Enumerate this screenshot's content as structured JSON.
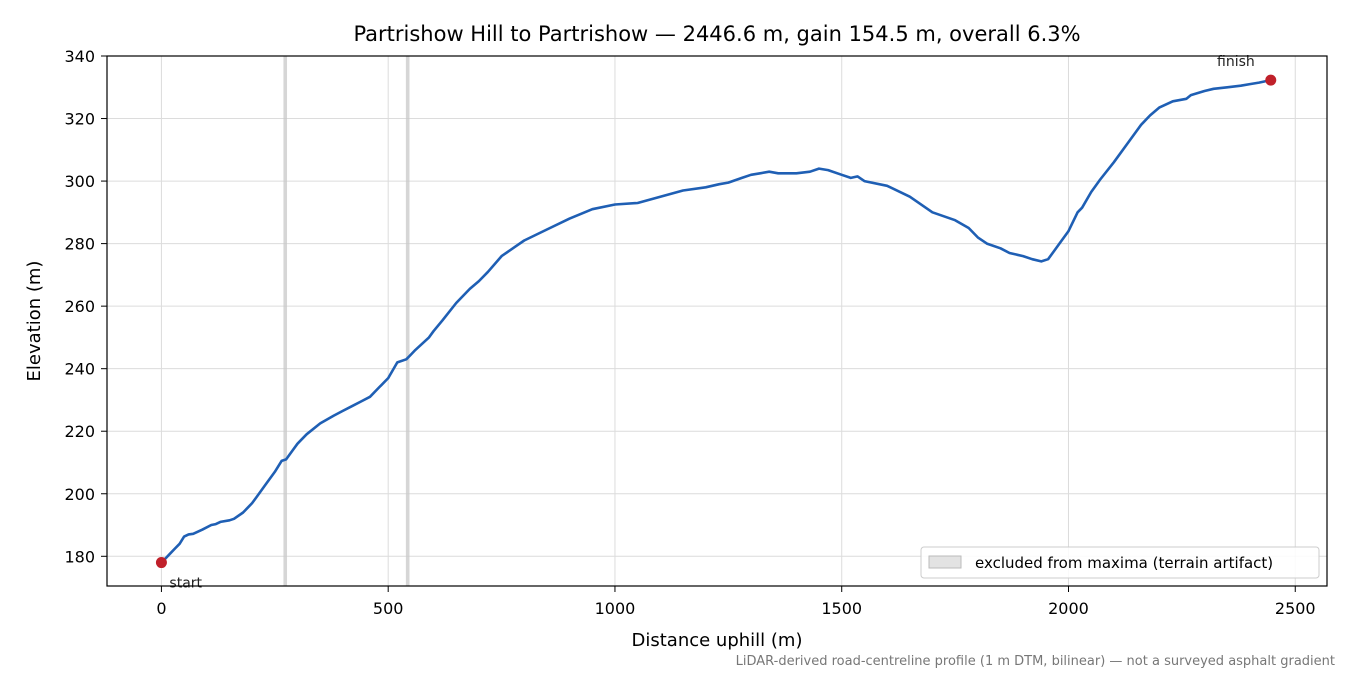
{
  "chart_data": {
    "type": "line",
    "title": "Partrishow Hill to Partrishow — 2446.6 m, gain 154.5 m, overall 6.3%",
    "xlabel": "Distance uphill (m)",
    "ylabel": "Elevation (m)",
    "xlim": [
      -120,
      2570
    ],
    "ylim": [
      170.5,
      340
    ],
    "xticks": [
      0,
      500,
      1000,
      1500,
      2000,
      2500
    ],
    "yticks": [
      180,
      200,
      220,
      240,
      260,
      280,
      300,
      320,
      340
    ],
    "grid": true,
    "legend_placement": "lower-right",
    "legend": [
      {
        "label": "excluded from maxima (terrain artifact)",
        "color": "#c8c8c8"
      }
    ],
    "excluded_x": [
      273,
      543
    ],
    "series": [
      {
        "color": "#1f5fb4",
        "x": [
          0,
          10,
          20,
          30,
          40,
          50,
          60,
          70,
          90,
          110,
          120,
          130,
          150,
          160,
          180,
          190,
          200,
          210,
          230,
          250,
          265,
          275,
          290,
          300,
          320,
          350,
          380,
          400,
          420,
          440,
          460,
          480,
          500,
          520,
          540,
          550,
          560,
          575,
          590,
          600,
          620,
          650,
          680,
          700,
          720,
          750,
          780,
          800,
          850,
          900,
          950,
          1000,
          1050,
          1100,
          1150,
          1200,
          1230,
          1250,
          1280,
          1300,
          1320,
          1340,
          1360,
          1400,
          1430,
          1450,
          1470,
          1500,
          1520,
          1535,
          1550,
          1600,
          1650,
          1700,
          1750,
          1780,
          1800,
          1820,
          1850,
          1870,
          1900,
          1920,
          1940,
          1955,
          1970,
          1980,
          2000,
          2020,
          2030,
          2050,
          2070,
          2100,
          2130,
          2160,
          2180,
          2200,
          2230,
          2260,
          2270,
          2300,
          2320,
          2350,
          2380,
          2400,
          2420,
          2446
        ],
        "values": [
          178,
          179.5,
          181,
          182.5,
          184,
          186.3,
          187,
          187.2,
          188.5,
          190,
          190.3,
          191,
          191.5,
          192,
          194,
          195.5,
          197,
          199,
          203,
          207,
          210.5,
          211,
          214,
          216,
          219,
          222.5,
          225,
          226.5,
          228,
          229.5,
          231,
          234,
          237,
          242,
          243,
          244.5,
          246,
          248,
          250,
          252,
          255.5,
          261,
          265.5,
          268,
          271,
          276,
          279,
          281,
          284.5,
          288,
          291,
          292.5,
          293,
          295,
          297,
          298,
          299,
          299.5,
          301,
          302,
          302.5,
          303,
          302.5,
          302.5,
          303,
          304,
          303.5,
          302,
          301,
          301.5,
          300,
          298.5,
          295,
          290,
          287.5,
          285,
          282,
          280,
          278.5,
          277,
          276,
          275,
          274.3,
          275,
          278,
          280,
          284,
          290,
          291.5,
          296.5,
          300.5,
          306,
          312,
          318,
          321,
          323.5,
          325.5,
          326.3,
          327.5,
          328.8,
          329.5,
          330,
          330.5,
          331,
          331.5,
          332.3
        ]
      }
    ],
    "markers": [
      {
        "label": "start",
        "x": 0,
        "y": 178,
        "color": "#c0202a"
      },
      {
        "label": "finish",
        "x": 2446,
        "y": 332.3,
        "color": "#c0202a"
      }
    ],
    "footnote": "LiDAR-derived road-centreline profile (1 m DTM, bilinear) — not a surveyed asphalt gradient"
  }
}
